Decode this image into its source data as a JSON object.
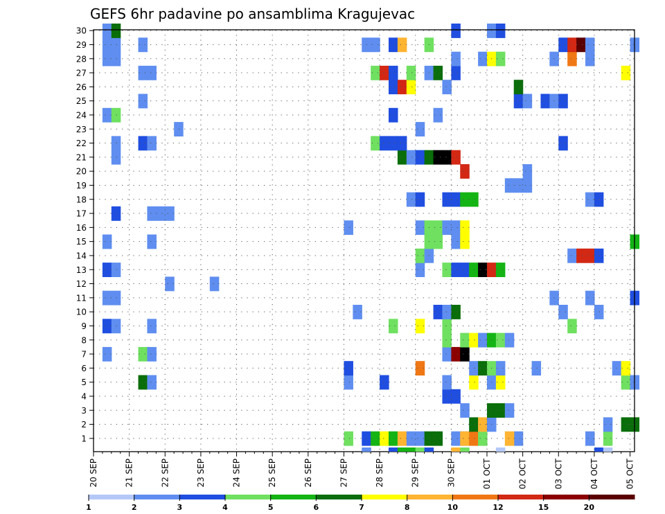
{
  "chart_data": {
    "type": "heatmap",
    "title": "GEFS 6hr padavine po ansamblima Kragujevac",
    "xlabel": "",
    "ylabel": "",
    "x_tick_labels": [
      "20 SEP",
      "21 SEP",
      "22 SEP",
      "23 SEP",
      "24 SEP",
      "25 SEP",
      "26 SEP",
      "27 SEP",
      "28 SEP",
      "29 SEP",
      "30 SEP",
      "01 OCT",
      "02 OCT",
      "03 OCT",
      "04 OCT",
      "05 OCT"
    ],
    "y_tick_labels": [
      "1",
      "2",
      "3",
      "4",
      "5",
      "6",
      "7",
      "8",
      "9",
      "10",
      "11",
      "12",
      "13",
      "14",
      "15",
      "16",
      "17",
      "18",
      "19",
      "20",
      "21",
      "22",
      "23",
      "24",
      "25",
      "26",
      "27",
      "28",
      "29",
      "30"
    ],
    "xlim_days": [
      0,
      15
    ],
    "steps_per_day": 4,
    "ylim": [
      0.5,
      30.5
    ],
    "grid": true,
    "grid_style": "dotted",
    "colorbar": {
      "position": "bottom",
      "labels": [
        "1",
        "2",
        "3",
        "4",
        "5",
        "6",
        "7",
        "8",
        "10",
        "12",
        "15",
        "20"
      ],
      "colors": [
        "#b4c8f8",
        "#5f8ef0",
        "#1f4ee0",
        "#6fe060",
        "#14b414",
        "#0a6e0a",
        "#ffff00",
        "#ffb432",
        "#f07814",
        "#d22814",
        "#8c0000",
        "#5a0000"
      ]
    },
    "cells": [
      [
        8,
        12,
        1
      ],
      [
        28,
        1,
        3
      ],
      [
        30,
        1,
        2
      ],
      [
        31,
        1,
        4
      ],
      [
        32,
        1,
        6
      ],
      [
        33,
        1,
        4
      ],
      [
        34,
        1,
        7
      ],
      [
        35,
        1,
        1
      ],
      [
        36,
        1,
        1
      ],
      [
        40,
        1,
        1
      ],
      [
        41,
        1,
        1
      ],
      [
        47,
        1,
        1
      ],
      [
        55,
        1,
        1
      ],
      [
        37,
        1,
        5
      ],
      [
        38,
        1,
        5
      ],
      [
        41,
        1,
        7
      ],
      [
        42,
        1,
        8
      ],
      [
        43,
        1,
        3
      ],
      [
        46,
        1,
        7
      ],
      [
        57,
        1,
        3
      ],
      [
        42,
        2,
        5
      ],
      [
        43,
        2,
        7
      ],
      [
        44,
        2,
        1
      ],
      [
        57,
        2,
        1
      ],
      [
        59,
        2,
        5
      ],
      [
        60,
        2,
        5
      ],
      [
        41,
        3,
        1
      ],
      [
        44,
        3,
        5
      ],
      [
        45,
        3,
        5
      ],
      [
        46,
        3,
        1
      ],
      [
        39,
        4,
        2
      ],
      [
        40,
        4,
        2
      ],
      [
        5,
        5,
        5
      ],
      [
        6,
        5,
        1
      ],
      [
        28,
        5,
        1
      ],
      [
        32,
        5,
        2
      ],
      [
        39,
        5,
        1
      ],
      [
        42,
        5,
        6
      ],
      [
        44,
        5,
        1
      ],
      [
        45,
        5,
        6
      ],
      [
        59,
        5,
        3
      ],
      [
        60,
        5,
        1
      ],
      [
        28,
        6,
        2
      ],
      [
        36,
        6,
        8
      ],
      [
        42,
        6,
        1
      ],
      [
        43,
        6,
        5
      ],
      [
        44,
        6,
        3
      ],
      [
        45,
        6,
        1
      ],
      [
        49,
        6,
        1
      ],
      [
        58,
        6,
        1
      ],
      [
        59,
        6,
        6
      ],
      [
        1,
        7,
        1
      ],
      [
        5,
        7,
        3
      ],
      [
        6,
        7,
        1
      ],
      [
        39,
        7,
        1
      ],
      [
        40,
        7,
        10
      ],
      [
        41,
        7,
        12
      ],
      [
        39,
        8,
        3
      ],
      [
        41,
        8,
        3
      ],
      [
        42,
        8,
        6
      ],
      [
        43,
        8,
        1
      ],
      [
        44,
        8,
        4
      ],
      [
        45,
        8,
        3
      ],
      [
        46,
        8,
        1
      ],
      [
        1,
        9,
        2
      ],
      [
        2,
        9,
        1
      ],
      [
        6,
        9,
        1
      ],
      [
        33,
        9,
        3
      ],
      [
        36,
        9,
        6
      ],
      [
        39,
        9,
        3
      ],
      [
        53,
        9,
        3
      ],
      [
        29,
        10,
        1
      ],
      [
        38,
        10,
        2
      ],
      [
        39,
        10,
        1
      ],
      [
        40,
        10,
        5
      ],
      [
        52,
        10,
        1
      ],
      [
        56,
        10,
        1
      ],
      [
        1,
        11,
        1
      ],
      [
        2,
        11,
        1
      ],
      [
        51,
        11,
        1
      ],
      [
        55,
        11,
        1
      ],
      [
        60,
        11,
        2
      ],
      [
        13,
        12,
        1
      ],
      [
        1,
        13,
        2
      ],
      [
        2,
        13,
        1
      ],
      [
        36,
        13,
        1
      ],
      [
        39,
        13,
        3
      ],
      [
        40,
        13,
        2
      ],
      [
        41,
        13,
        2
      ],
      [
        42,
        13,
        4
      ],
      [
        43,
        13,
        12
      ],
      [
        44,
        13,
        9
      ],
      [
        45,
        13,
        4
      ],
      [
        36,
        14,
        3
      ],
      [
        37,
        14,
        1
      ],
      [
        53,
        14,
        1
      ],
      [
        54,
        14,
        9
      ],
      [
        55,
        14,
        9
      ],
      [
        56,
        14,
        2
      ],
      [
        1,
        15,
        1
      ],
      [
        6,
        15,
        1
      ],
      [
        37,
        15,
        3
      ],
      [
        38,
        15,
        3
      ],
      [
        40,
        15,
        1
      ],
      [
        41,
        15,
        6
      ],
      [
        60,
        15,
        4
      ],
      [
        28,
        16,
        1
      ],
      [
        36,
        16,
        1
      ],
      [
        37,
        16,
        3
      ],
      [
        38,
        16,
        3
      ],
      [
        39,
        16,
        1
      ],
      [
        40,
        16,
        1
      ],
      [
        41,
        16,
        6
      ],
      [
        2,
        17,
        2
      ],
      [
        6,
        17,
        1
      ],
      [
        7,
        17,
        1
      ],
      [
        8,
        17,
        1
      ],
      [
        35,
        18,
        1
      ],
      [
        36,
        18,
        2
      ],
      [
        39,
        18,
        2
      ],
      [
        40,
        18,
        2
      ],
      [
        41,
        18,
        4
      ],
      [
        42,
        18,
        4
      ],
      [
        55,
        18,
        1
      ],
      [
        56,
        18,
        2
      ],
      [
        46,
        19,
        1
      ],
      [
        47,
        19,
        1
      ],
      [
        48,
        19,
        1
      ],
      [
        41,
        20,
        9
      ],
      [
        48,
        20,
        1
      ],
      [
        2,
        21,
        1
      ],
      [
        34,
        21,
        5
      ],
      [
        35,
        21,
        1
      ],
      [
        36,
        21,
        2
      ],
      [
        37,
        21,
        5
      ],
      [
        38,
        21,
        12
      ],
      [
        39,
        21,
        12
      ],
      [
        40,
        21,
        9
      ],
      [
        2,
        22,
        1
      ],
      [
        5,
        22,
        2
      ],
      [
        6,
        22,
        1
      ],
      [
        31,
        22,
        3
      ],
      [
        32,
        22,
        2
      ],
      [
        33,
        22,
        2
      ],
      [
        34,
        22,
        2
      ],
      [
        52,
        22,
        2
      ],
      [
        9,
        23,
        1
      ],
      [
        36,
        23,
        1
      ],
      [
        1,
        24,
        1
      ],
      [
        2,
        24,
        3
      ],
      [
        33,
        24,
        2
      ],
      [
        38,
        24,
        1
      ],
      [
        5,
        25,
        1
      ],
      [
        47,
        25,
        2
      ],
      [
        48,
        25,
        1
      ],
      [
        50,
        25,
        2
      ],
      [
        51,
        25,
        1
      ],
      [
        52,
        25,
        2
      ],
      [
        33,
        26,
        2
      ],
      [
        34,
        26,
        9
      ],
      [
        35,
        26,
        6
      ],
      [
        39,
        26,
        1
      ],
      [
        47,
        26,
        5
      ],
      [
        5,
        27,
        1
      ],
      [
        6,
        27,
        1
      ],
      [
        31,
        27,
        3
      ],
      [
        32,
        27,
        9
      ],
      [
        33,
        27,
        2
      ],
      [
        35,
        27,
        3
      ],
      [
        37,
        27,
        1
      ],
      [
        38,
        27,
        5
      ],
      [
        40,
        27,
        2
      ],
      [
        59,
        27,
        6
      ],
      [
        1,
        28,
        1
      ],
      [
        2,
        28,
        1
      ],
      [
        40,
        28,
        1
      ],
      [
        43,
        28,
        1
      ],
      [
        44,
        28,
        6
      ],
      [
        45,
        28,
        3
      ],
      [
        51,
        28,
        1
      ],
      [
        53,
        28,
        8
      ],
      [
        55,
        28,
        1
      ],
      [
        1,
        29,
        1
      ],
      [
        2,
        29,
        1
      ],
      [
        5,
        29,
        1
      ],
      [
        30,
        29,
        1
      ],
      [
        31,
        29,
        1
      ],
      [
        33,
        29,
        2
      ],
      [
        34,
        29,
        7
      ],
      [
        37,
        29,
        3
      ],
      [
        52,
        29,
        2
      ],
      [
        53,
        29,
        9
      ],
      [
        54,
        29,
        11
      ],
      [
        55,
        29,
        1
      ],
      [
        60,
        29,
        1
      ],
      [
        1,
        30,
        1
      ],
      [
        2,
        30,
        5
      ],
      [
        40,
        30,
        2
      ],
      [
        44,
        30,
        1
      ],
      [
        45,
        30,
        2
      ]
    ],
    "strip_cells": [
      [
        30,
        1
      ],
      [
        33,
        2
      ],
      [
        34,
        4
      ],
      [
        35,
        4
      ],
      [
        36,
        3
      ],
      [
        37,
        2
      ],
      [
        40,
        7
      ],
      [
        41,
        3
      ],
      [
        45,
        0
      ],
      [
        56,
        2
      ],
      [
        57,
        0
      ]
    ]
  }
}
